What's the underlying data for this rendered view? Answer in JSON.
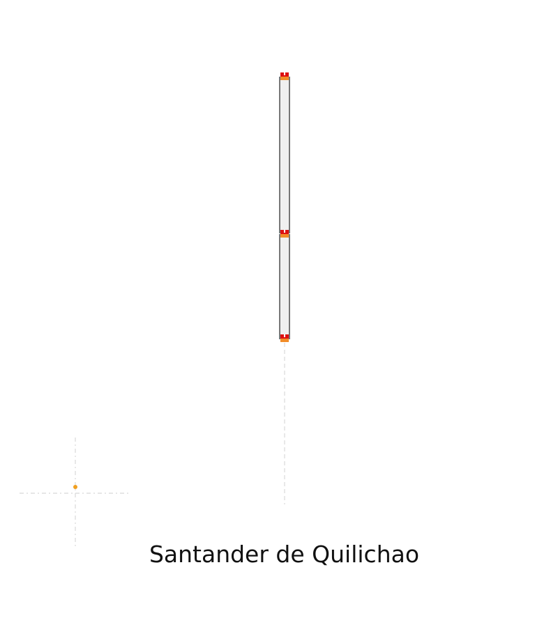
{
  "place_name": "Santander de Quilichao",
  "colors": {
    "background": "#ffffff",
    "bar_fill": "#f0f0f0",
    "bar_outline": "#777777",
    "marker_primary": "#dd1111",
    "marker_secondary": "#f28c28",
    "small_marker": "#f0a020",
    "guide_line": "#d8d8d8"
  }
}
